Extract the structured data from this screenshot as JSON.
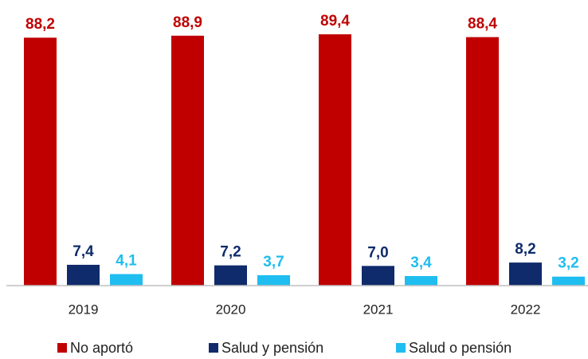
{
  "chart_data": {
    "type": "bar",
    "categories": [
      "2019",
      "2020",
      "2021",
      "2022"
    ],
    "series": [
      {
        "name": "No aportó",
        "color": "#c00000",
        "values": [
          88.2,
          88.9,
          89.4,
          88.4
        ],
        "value_labels": [
          "88,2",
          "88,9",
          "89,4",
          "88,4"
        ]
      },
      {
        "name": "Salud y pensión",
        "color": "#0f2b6b",
        "values": [
          7.4,
          7.2,
          7.0,
          8.2
        ],
        "value_labels": [
          "7,4",
          "7,2",
          "7,0",
          "8,2"
        ]
      },
      {
        "name": "Salud o pensión",
        "color": "#1fbdf0",
        "values": [
          4.1,
          3.7,
          3.4,
          3.2
        ],
        "value_labels": [
          "4,1",
          "3,7",
          "3,4",
          "3,2"
        ]
      }
    ],
    "legend": "bottom"
  }
}
